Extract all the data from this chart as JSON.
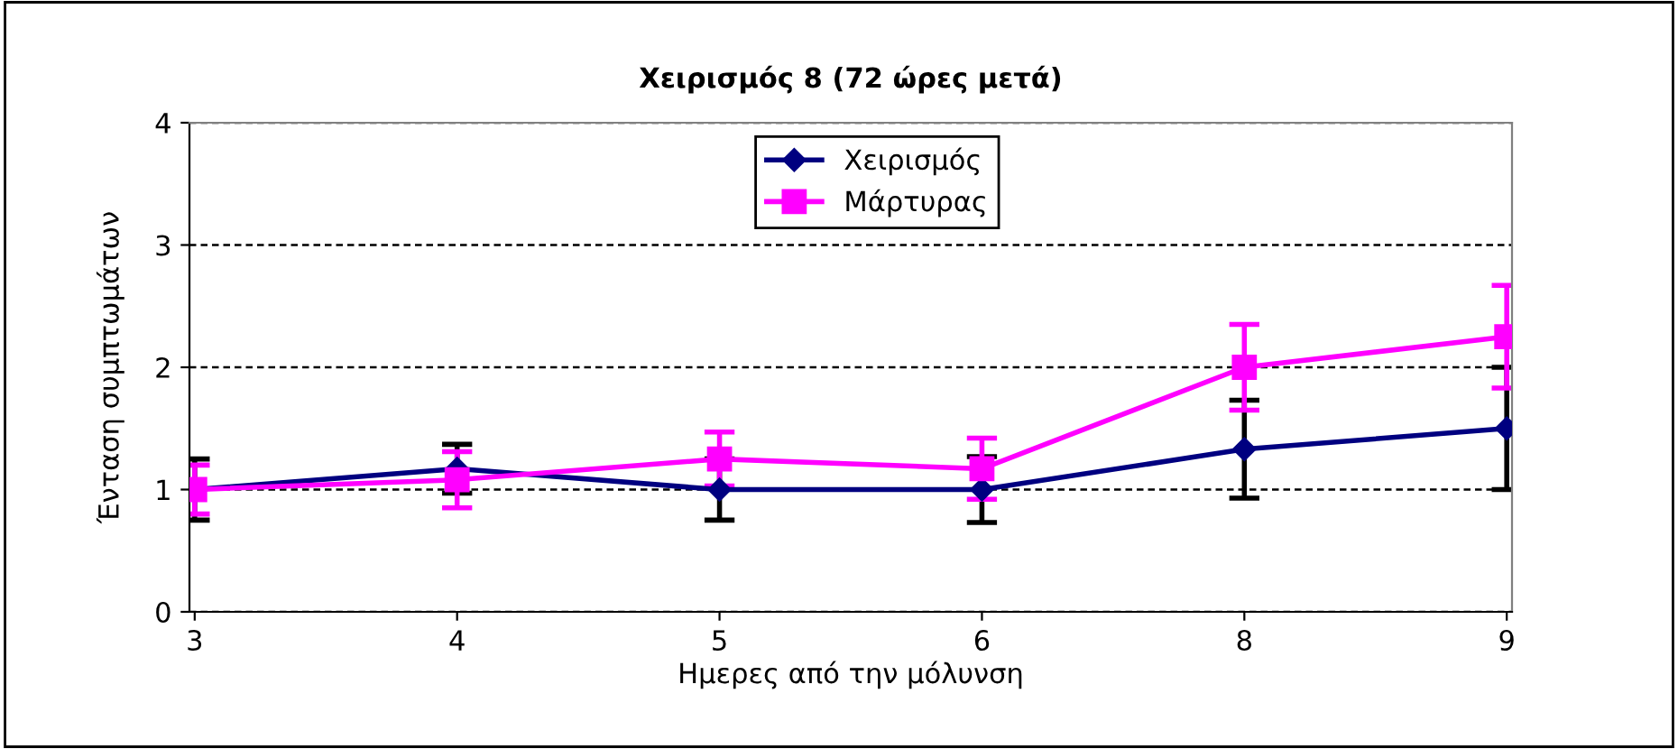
{
  "chart_data": {
    "type": "line",
    "title": "Χειρισμός 8 (72 ώρες μετά)",
    "xlabel": "Ημερες από την μόλυνση",
    "ylabel": "Ένταση συμπτωμάτων",
    "categories": [
      "3",
      "4",
      "5",
      "6",
      "8",
      "9"
    ],
    "series": [
      {
        "name": "Χειρισμός",
        "color": "#000080",
        "marker": "diamond",
        "values": [
          1.0,
          1.17,
          1.0,
          1.0,
          1.33,
          1.5
        ],
        "errors": [
          0.25,
          0.2,
          0.25,
          0.27,
          0.4,
          0.5
        ]
      },
      {
        "name": "Μάρτυρας",
        "color": "#ff00ff",
        "marker": "square",
        "values": [
          1.0,
          1.08,
          1.25,
          1.17,
          2.0,
          2.25
        ],
        "errors": [
          0.2,
          0.23,
          0.22,
          0.25,
          0.35,
          0.42
        ]
      }
    ],
    "ylim": [
      0,
      4
    ],
    "yticks": [
      0,
      1,
      2,
      3,
      4
    ],
    "grid": "y",
    "legend": "top",
    "line_style": "solid"
  }
}
